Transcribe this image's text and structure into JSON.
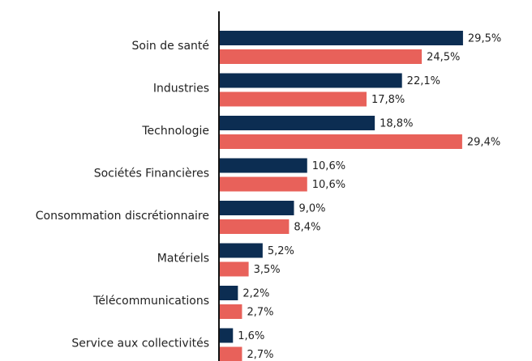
{
  "chart_data": {
    "type": "barh",
    "categories": [
      "Soin de santé",
      "Industries",
      "Technologie",
      "Sociétés Financières",
      "Consommation discrétionnaire",
      "Matériels",
      "Télécommunications",
      "Service aux collectivités"
    ],
    "series": [
      {
        "color": "#0c2d52",
        "values": [
          29.5,
          22.1,
          18.8,
          10.6,
          9.0,
          5.2,
          2.2,
          1.6
        ],
        "value_labels": [
          "29,5%",
          "22,1%",
          "18,8%",
          "10,6%",
          "9,0%",
          "5,2%",
          "2,2%",
          "1,6%"
        ]
      },
      {
        "color": "#e8615a",
        "values": [
          24.5,
          17.8,
          29.4,
          10.6,
          8.4,
          3.5,
          2.7,
          2.7
        ],
        "value_labels": [
          "24,5%",
          "17,8%",
          "29,4%",
          "10,6%",
          "8,4%",
          "3,5%",
          "2,7%",
          "2,7%"
        ]
      }
    ],
    "xlim": [
      0,
      30
    ]
  }
}
